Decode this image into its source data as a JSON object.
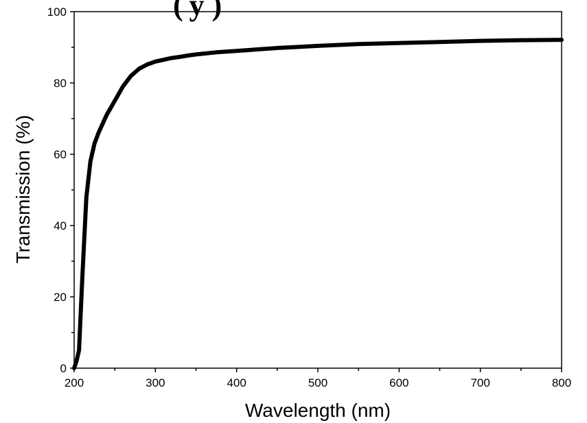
{
  "header_fragment": "( y )",
  "chart_data": {
    "type": "line",
    "title": "",
    "xlabel": "Wavelength (nm)",
    "ylabel": "Transmission (%)",
    "xlim": [
      200,
      800
    ],
    "ylim": [
      0,
      100
    ],
    "xticks": [
      200,
      300,
      400,
      500,
      600,
      700,
      800
    ],
    "yticks": [
      0,
      20,
      40,
      60,
      80,
      100
    ],
    "grid": false,
    "legend": "none",
    "line_color": "#000000",
    "series": [
      {
        "x": [
          200,
          203,
          206,
          210,
          215,
          220,
          225,
          230,
          240,
          250,
          260,
          270,
          280,
          290,
          300,
          310,
          320,
          330,
          340,
          350,
          375,
          400,
          425,
          450,
          475,
          500,
          550,
          600,
          650,
          700,
          750,
          800
        ],
        "y": [
          0,
          2,
          5,
          25,
          48,
          58,
          63,
          66,
          71,
          75,
          79,
          82,
          84,
          85.2,
          86,
          86.5,
          87,
          87.3,
          87.7,
          88,
          88.6,
          89,
          89.4,
          89.8,
          90.1,
          90.4,
          90.9,
          91.2,
          91.5,
          91.8,
          92,
          92.1
        ]
      }
    ]
  }
}
